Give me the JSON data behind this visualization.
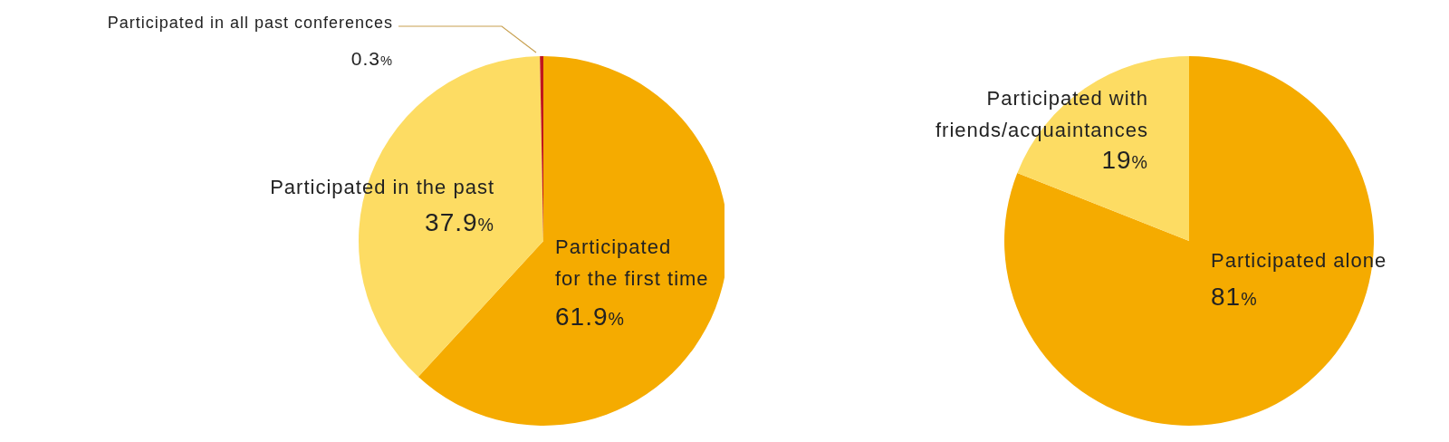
{
  "chart_data": [
    {
      "type": "pie",
      "categories": [
        "Participated for the first time",
        "Participated in the past",
        "Participated in all past conferences"
      ],
      "values": [
        61.9,
        37.9,
        0.3
      ],
      "colors": [
        "#f5ab00",
        "#fddc63",
        "#c0171e"
      ],
      "value_labels": [
        "61.9%",
        "37.9%",
        "0.3%"
      ]
    },
    {
      "type": "pie",
      "categories": [
        "Participated alone",
        "Participated with friends/acquaintances"
      ],
      "values": [
        81,
        19
      ],
      "colors": [
        "#f5ab00",
        "#fddc63"
      ],
      "value_labels": [
        "81%",
        "19%"
      ]
    }
  ]
}
